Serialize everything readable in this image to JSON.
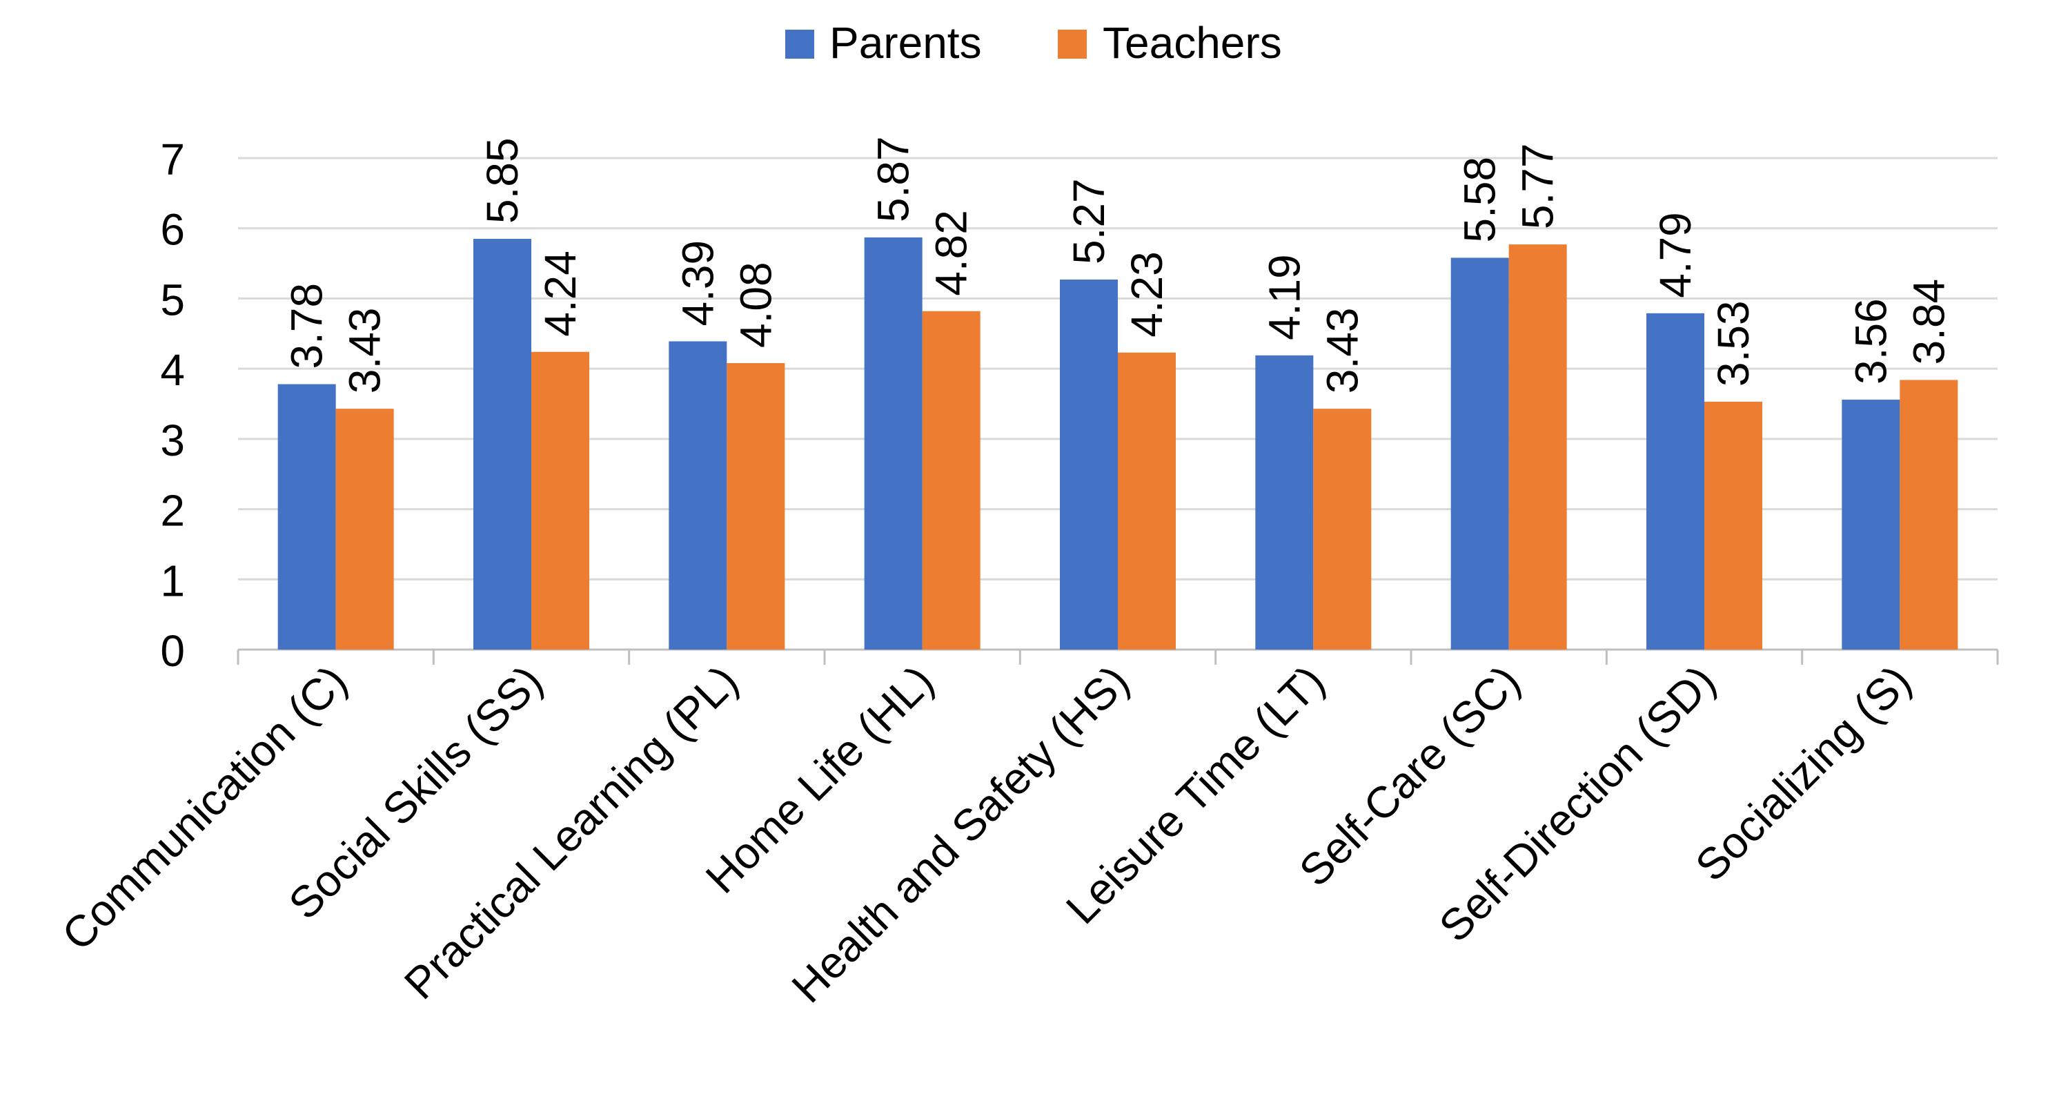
{
  "chart_data": {
    "type": "bar",
    "title": "",
    "xlabel": "",
    "ylabel": "",
    "ylim": [
      0,
      7
    ],
    "yticks": [
      0,
      1,
      2,
      3,
      4,
      5,
      6,
      7
    ],
    "grid": true,
    "legend_position": "top-center",
    "categories": [
      "Communication (C)",
      "Social Skills (SS)",
      "Practical Learning (PL)",
      "Home Life (HL)",
      "Health and Safety (HS)",
      "Leisure Time (LT)",
      "Self-Care (SC)",
      "Self-Direction (SD)",
      "Socializing (S)"
    ],
    "series": [
      {
        "name": "Parents",
        "color": "#4472C4",
        "values": [
          3.78,
          5.85,
          4.39,
          5.87,
          5.27,
          4.19,
          5.58,
          4.79,
          3.56
        ],
        "labels": [
          "3.78",
          "5.85",
          "4.39",
          "5.87",
          "5.27",
          "4.19",
          "5.58",
          "4.79",
          "3.56"
        ]
      },
      {
        "name": "Teachers",
        "color": "#ED7D31",
        "values": [
          3.43,
          4.24,
          4.08,
          4.82,
          4.23,
          3.43,
          5.77,
          3.53,
          3.84
        ],
        "labels": [
          "3.43",
          "4.24",
          "4.08",
          "4.82",
          "4.23",
          "3.43",
          "5.77",
          "3.53",
          "3.84"
        ]
      }
    ]
  }
}
